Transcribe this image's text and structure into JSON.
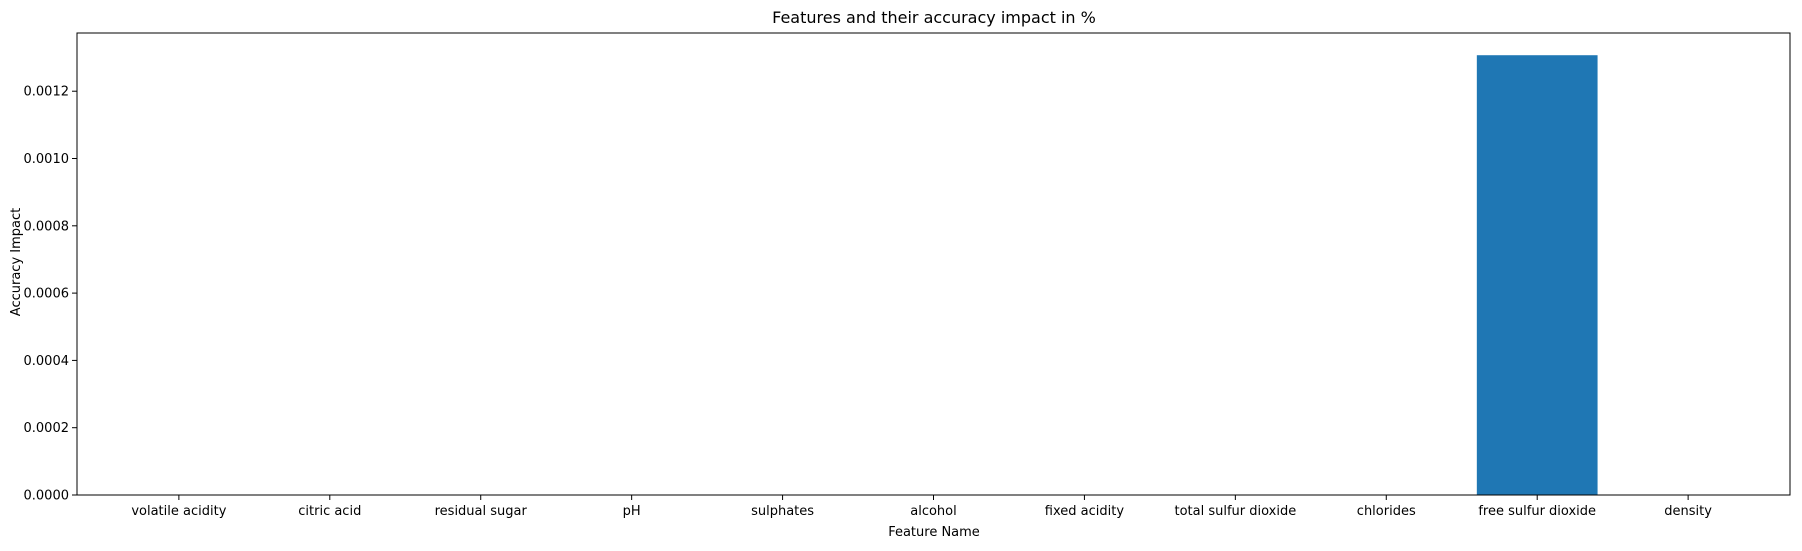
{
  "chart_data": {
    "type": "bar",
    "title": "Features and their accuracy impact in %",
    "xlabel": "Feature Name",
    "ylabel": "Accuracy Impact",
    "categories": [
      "volatile acidity",
      "citric acid",
      "residual sugar",
      "pH",
      "sulphates",
      "alcohol",
      "fixed acidity",
      "total sulfur dioxide",
      "chlorides",
      "free sulfur dioxide",
      "density"
    ],
    "values": [
      0,
      0,
      0,
      0,
      0,
      0,
      0,
      0,
      0,
      0.001307,
      0
    ],
    "ylim": [
      0,
      0.001373
    ],
    "yticks": [
      0,
      0.0002,
      0.0004,
      0.0006,
      0.0008,
      0.001,
      0.0012
    ],
    "ytick_labels": [
      "0.0000",
      "0.0002",
      "0.0004",
      "0.0006",
      "0.0008",
      "0.0010",
      "0.0012"
    ],
    "grid": false,
    "bar_color": "#1f77b4"
  }
}
